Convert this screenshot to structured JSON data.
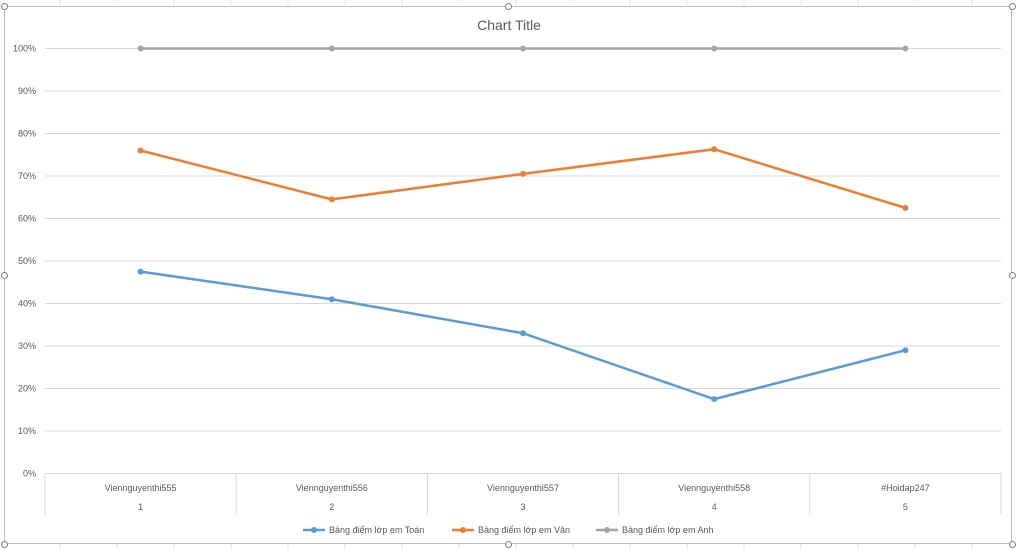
{
  "chart_data": {
    "type": "line",
    "title": "Chart Title",
    "categories": [
      {
        "name": "Viennguyenthi555",
        "index": "1"
      },
      {
        "name": "Viennguyenthi556",
        "index": "2"
      },
      {
        "name": "Viennguyenthi557",
        "index": "3"
      },
      {
        "name": "Viennguyenthi558",
        "index": "4"
      },
      {
        "name": "#Hoidap247",
        "index": "5"
      }
    ],
    "ylim": [
      0,
      100
    ],
    "y_ticks": [
      "0%",
      "10%",
      "20%",
      "30%",
      "40%",
      "50%",
      "60%",
      "70%",
      "80%",
      "90%",
      "100%"
    ],
    "grid": true,
    "legend_position": "bottom",
    "series": [
      {
        "name": "Bảng điểm lớp em Toán",
        "color": "#5b9bd5",
        "values": [
          47.5,
          41,
          33,
          17.5,
          29
        ]
      },
      {
        "name": "Bảng điểm lớp em Văn",
        "color": "#ed7d31",
        "values": [
          76,
          64.5,
          70.5,
          76.3,
          62.5
        ]
      },
      {
        "name": "Bảng điểm lớp em Anh",
        "color": "#a5a5a5",
        "values": [
          100,
          100,
          100,
          100,
          100
        ]
      }
    ]
  }
}
